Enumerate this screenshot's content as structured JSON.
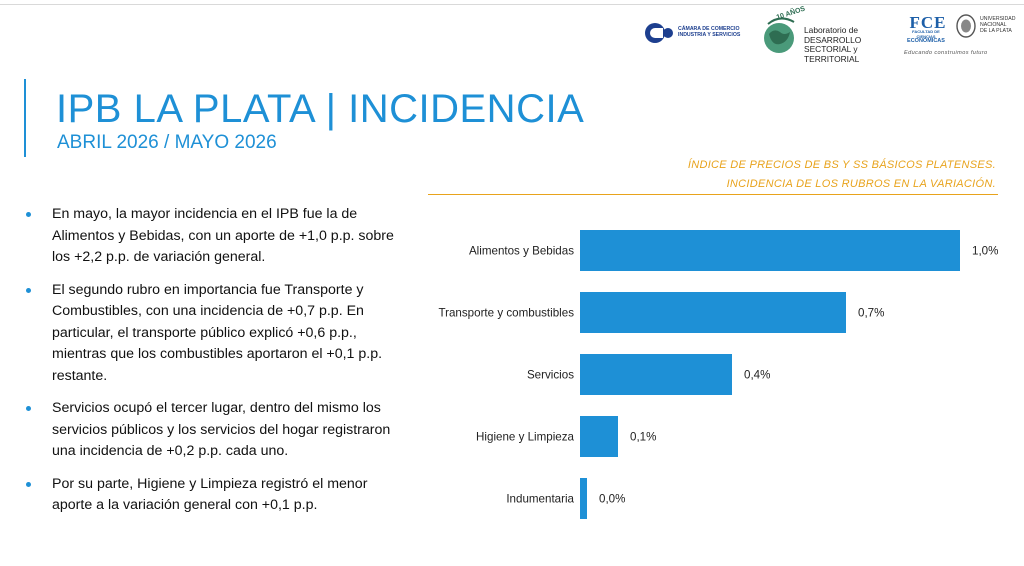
{
  "header": {
    "logos": {
      "camara": {
        "line1": "CÁMARA DE COMERCIO",
        "line2": "INDUSTRIA Y SERVICIOS"
      },
      "lab": {
        "badge": "10 AÑOS",
        "line1": "Laboratorio de DESARROLLO",
        "line2": "SECTORIAL y TERRITORIAL"
      },
      "fce": {
        "mark": "FCE",
        "sub1": "FACULTAD DE CIENCIAS",
        "sub2": "ECONÓMICAS",
        "tagline": "Educando construimos futuro"
      },
      "unlp": {
        "line1": "UNIVERSIDAD",
        "line2": "NACIONAL",
        "line3": "DE LA PLATA"
      }
    }
  },
  "title": "IPB LA PLATA | INCIDENCIA",
  "subtitle": "ABRIL 2026 / MAYO 2026",
  "bullets": [
    "En mayo, la mayor incidencia en el IPB fue la de Alimentos y Bebidas, con un aporte de +1,0 p.p. sobre los +2,2 p.p. de variación general.",
    "El segundo rubro en importancia fue Transporte y Combustibles, con una incidencia de +0,7 p.p. En particular, el transporte público explicó +0,6 p.p., mientras que los combustibles aportaron el +0,1 p.p. restante.",
    "Servicios ocupó el tercer lugar, dentro del mismo los servicios públicos y los servicios del hogar registraron una incidencia de +0,2 p.p. cada uno.",
    "Por su parte, Higiene y Limpieza registró el menor aporte a la variación general con +0,1 p.p."
  ],
  "chart_caption": {
    "line1": "ÍNDICE DE PRECIOS DE BS Y SS BÁSICOS PLATENSES.",
    "line2": "INCIDENCIA DE LOS RUBROS EN LA VARIACIÓN."
  },
  "colors": {
    "accent": "#1e90d6",
    "caption": "#e8a31c",
    "bar": "#1e90d6"
  },
  "chart_data": {
    "type": "bar",
    "orientation": "horizontal",
    "categories": [
      "Alimentos y Bebidas",
      "Transporte y combustibles",
      "Servicios",
      "Higiene y Limpieza",
      "Indumentaria"
    ],
    "values": [
      1.0,
      0.7,
      0.4,
      0.1,
      0.0
    ],
    "value_labels": [
      "1,0%",
      "0,7%",
      "0,4%",
      "0,1%",
      "0,0%"
    ],
    "xlim": [
      0,
      1.0
    ],
    "grid": false,
    "legend": false
  }
}
